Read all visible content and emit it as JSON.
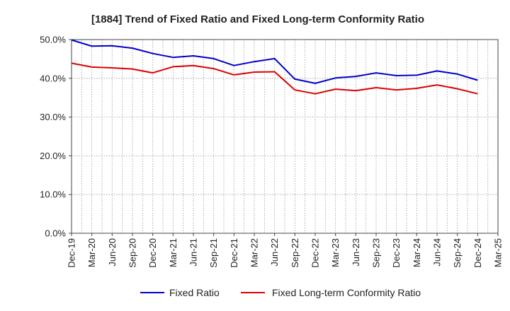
{
  "chart_data": {
    "type": "line",
    "title": "[1884]  Trend of Fixed Ratio and Fixed Long-term Conformity Ratio",
    "xlabel": "",
    "ylabel": "",
    "x": [
      "Dec-19",
      "Mar-20",
      "Jun-20",
      "Sep-20",
      "Dec-20",
      "Mar-21",
      "Jun-21",
      "Sep-21",
      "Dec-21",
      "Mar-22",
      "Jun-22",
      "Sep-22",
      "Dec-22",
      "Mar-23",
      "Jun-23",
      "Sep-23",
      "Dec-23",
      "Mar-24",
      "Jun-24",
      "Sep-24",
      "Dec-24",
      "Mar-25"
    ],
    "ylim": [
      0,
      50
    ],
    "yticks": [
      "0.0%",
      "10.0%",
      "20.0%",
      "30.0%",
      "40.0%",
      "50.0%"
    ],
    "series": [
      {
        "name": "Fixed Ratio",
        "color": "#0000cc",
        "values": [
          49.9,
          48.3,
          48.4,
          47.8,
          46.4,
          45.4,
          45.8,
          45.1,
          43.3,
          44.3,
          45.1,
          39.8,
          38.7,
          40.1,
          40.5,
          41.4,
          40.7,
          40.8,
          41.9,
          41.1,
          39.5,
          null
        ]
      },
      {
        "name": "Fixed Long-term Conformity Ratio",
        "color": "#dd0000",
        "values": [
          43.9,
          42.9,
          42.7,
          42.4,
          41.4,
          43.0,
          43.3,
          42.5,
          40.9,
          41.6,
          41.7,
          37.0,
          36.0,
          37.2,
          36.8,
          37.6,
          37.0,
          37.4,
          38.3,
          37.3,
          36.0,
          null
        ]
      }
    ],
    "grid": true,
    "legend": "bottom"
  }
}
